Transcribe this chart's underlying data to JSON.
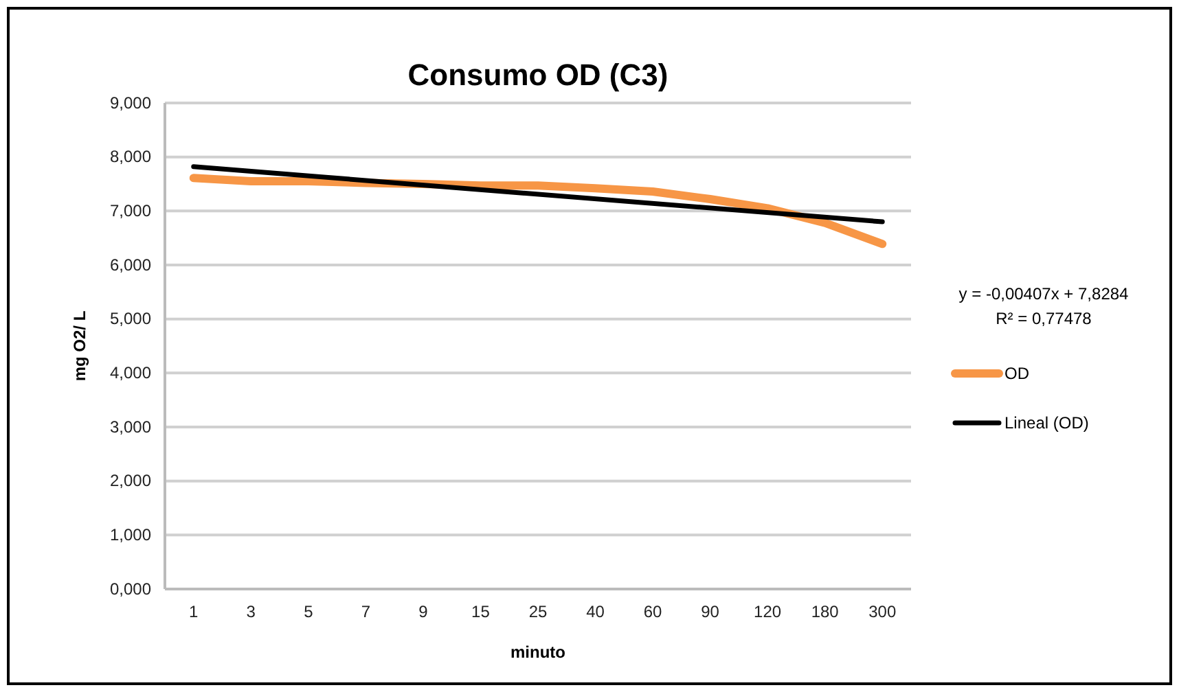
{
  "chart_data": {
    "type": "line",
    "title": "Consumo OD (C3)",
    "xlabel": "minuto",
    "ylabel": "mg O2/ L",
    "categories": [
      "1",
      "3",
      "5",
      "7",
      "9",
      "15",
      "25",
      "40",
      "60",
      "90",
      "120",
      "180",
      "300"
    ],
    "series": [
      {
        "name": "OD",
        "color": "#f79646",
        "values": [
          7.61,
          7.55,
          7.55,
          7.52,
          7.5,
          7.47,
          7.47,
          7.42,
          7.36,
          7.22,
          7.05,
          6.78,
          6.39
        ]
      },
      {
        "name": "Lineal (OD)",
        "color": "#000000",
        "x": [
          "1",
          "300"
        ],
        "values": [
          7.82,
          6.8
        ]
      }
    ],
    "ylim": [
      0,
      9
    ],
    "yticks": [
      {
        "value": 0,
        "label": "0,000"
      },
      {
        "value": 1,
        "label": "1,000"
      },
      {
        "value": 2,
        "label": "2,000"
      },
      {
        "value": 3,
        "label": "3,000"
      },
      {
        "value": 4,
        "label": "4,000"
      },
      {
        "value": 5,
        "label": "5,000"
      },
      {
        "value": 6,
        "label": "6,000"
      },
      {
        "value": 7,
        "label": "7,000"
      },
      {
        "value": 8,
        "label": "8,000"
      },
      {
        "value": 9,
        "label": "9,000"
      }
    ],
    "grid": "y",
    "legend": "right",
    "annotations": [
      "y = -0,00407x + 7,8284",
      "R² = 0,77478"
    ]
  }
}
